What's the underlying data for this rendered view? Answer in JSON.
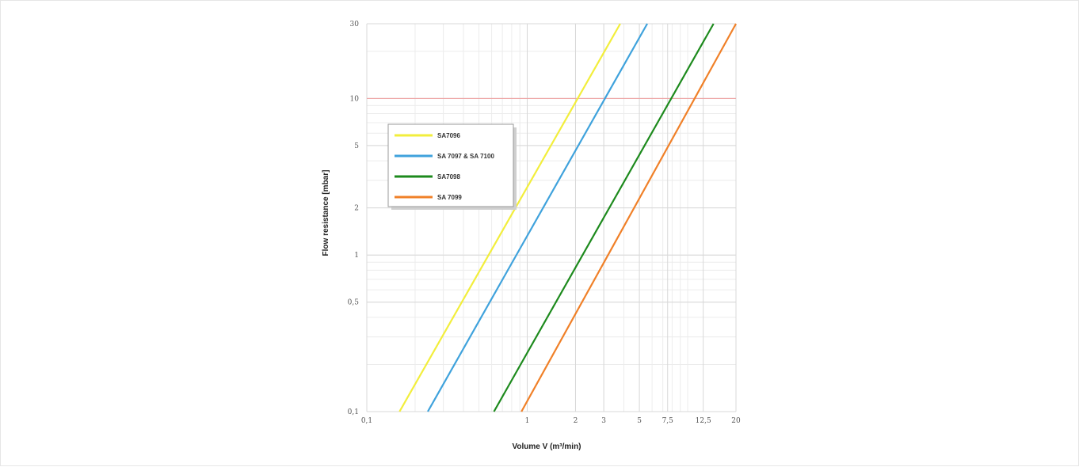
{
  "chart_data": {
    "type": "line",
    "xlabel": "Volume V (m³/min)",
    "ylabel": "Flow resistance [mbar]",
    "x_scale": "log",
    "y_scale": "log",
    "xlim": [
      0.1,
      20
    ],
    "ylim": [
      0.1,
      30
    ],
    "x_ticks": [
      {
        "value": 0.1,
        "label": "0,1"
      },
      {
        "value": 1,
        "label": "1"
      },
      {
        "value": 2,
        "label": "2"
      },
      {
        "value": 3,
        "label": "3"
      },
      {
        "value": 5,
        "label": "5"
      },
      {
        "value": 7.5,
        "label": "7,5"
      },
      {
        "value": 12.5,
        "label": "12,5"
      },
      {
        "value": 20,
        "label": "20"
      }
    ],
    "y_ticks": [
      {
        "value": 0.1,
        "label": "0,1"
      },
      {
        "value": 0.5,
        "label": "0,5"
      },
      {
        "value": 1,
        "label": "1"
      },
      {
        "value": 2,
        "label": "2"
      },
      {
        "value": 5,
        "label": "5"
      },
      {
        "value": 10,
        "label": "10"
      },
      {
        "value": 30,
        "label": "30"
      }
    ],
    "reference_line": {
      "y": 10,
      "color": "#f0a0a0"
    },
    "grid": true,
    "legend_position": "upper-left",
    "series": [
      {
        "name": "SA7096",
        "color": "#f2ee3c",
        "points": [
          [
            0.16,
            0.1
          ],
          [
            3.8,
            30
          ]
        ]
      },
      {
        "name": "SA 7097 & SA 7100",
        "color": "#3fa2dc",
        "points": [
          [
            0.24,
            0.1
          ],
          [
            5.6,
            30
          ]
        ]
      },
      {
        "name": "SA7098",
        "color": "#1d8a1d",
        "points": [
          [
            0.62,
            0.1
          ],
          [
            14.5,
            30
          ]
        ]
      },
      {
        "name": "SA 7099",
        "color": "#f08028",
        "points": [
          [
            0.92,
            0.1
          ],
          [
            20,
            30
          ]
        ]
      }
    ]
  }
}
